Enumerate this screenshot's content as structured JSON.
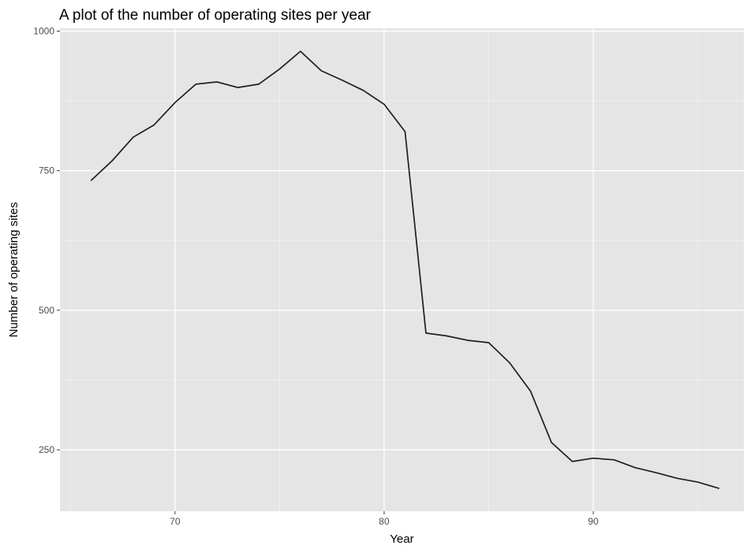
{
  "chart_data": {
    "type": "line",
    "title": "A plot of the number of operating sites per year",
    "xlabel": "Year",
    "ylabel": "Number of operating sites",
    "xlim": [
      64.5,
      97.2
    ],
    "ylim": [
      140,
      1005
    ],
    "x_ticks": [
      70,
      80,
      90
    ],
    "x_tick_labels": [
      "70",
      "80",
      "90"
    ],
    "x_minor_ticks": [
      65,
      75,
      85,
      95
    ],
    "y_ticks": [
      250,
      500,
      750,
      1000
    ],
    "y_tick_labels": [
      "250",
      "500",
      "750",
      "1000"
    ],
    "y_minor_ticks": [
      375,
      625,
      875
    ],
    "grid": true,
    "legend": "none",
    "series": [
      {
        "color": "#1f1f1f",
        "x": [
          66,
          67,
          68,
          69,
          70,
          71,
          72,
          73,
          74,
          75,
          76,
          77,
          78,
          79,
          80,
          81,
          82,
          83,
          84,
          85,
          86,
          87,
          88,
          89,
          90,
          91,
          92,
          93,
          94,
          95,
          96
        ],
        "y": [
          733,
          768,
          810,
          832,
          872,
          905,
          909,
          899,
          905,
          932,
          964,
          929,
          912,
          894,
          869,
          820,
          459,
          454,
          446,
          442,
          406,
          355,
          263,
          229,
          235,
          232,
          218,
          209,
          199,
          192,
          181
        ]
      }
    ]
  }
}
